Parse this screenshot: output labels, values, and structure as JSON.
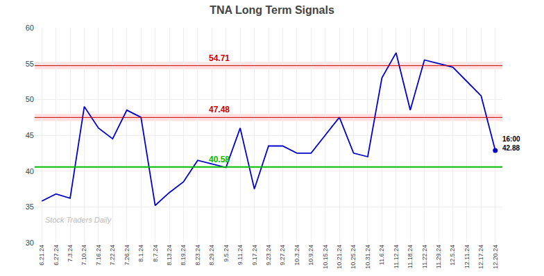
{
  "chart_data": {
    "type": "line",
    "title": "TNA Long Term Signals",
    "categories": [
      "6.21.24",
      "6.27.24",
      "7.3.24",
      "7.10.24",
      "7.16.24",
      "7.22.24",
      "7.26.24",
      "8.1.24",
      "8.7.24",
      "8.13.24",
      "8.19.24",
      "8.23.24",
      "8.29.24",
      "9.5.24",
      "9.11.24",
      "9.17.24",
      "9.23.24",
      "9.27.24",
      "10.3.24",
      "10.9.24",
      "10.15.24",
      "10.21.24",
      "10.25.24",
      "10.31.24",
      "11.6.24",
      "11.12.24",
      "11.18.24",
      "11.22.24",
      "11.29.24",
      "12.5.24",
      "12.11.24",
      "12.17.24",
      "12.20.24"
    ],
    "values": [
      35.8,
      36.8,
      36.2,
      49.0,
      46.0,
      44.5,
      48.5,
      47.5,
      35.2,
      37.0,
      38.5,
      41.5,
      41.0,
      40.5,
      46.0,
      37.5,
      43.5,
      43.5,
      42.5,
      42.5,
      45.0,
      47.5,
      42.5,
      42.0,
      53.0,
      56.5,
      48.5,
      55.5,
      55.0,
      54.5,
      52.5,
      50.5,
      42.88
    ],
    "color": "#0000cc",
    "ylim": [
      30,
      60
    ],
    "yticks": [
      30,
      35,
      40,
      45,
      50,
      55,
      60
    ],
    "grid": true,
    "reference_lines": [
      {
        "value": 54.71,
        "color": "#cc0000",
        "band": [
          54.21,
          55.21
        ],
        "band_color": "#ffcccc"
      },
      {
        "value": 47.48,
        "color": "#cc0000",
        "band": [
          46.98,
          47.98
        ],
        "band_color": "#ffcccc"
      },
      {
        "value": 40.58,
        "color": "#00bb00"
      }
    ],
    "annotations": [
      {
        "text": "16:00\n42.88"
      }
    ],
    "watermark": {
      "text": "Stock Traders Daily",
      "color": "#bbbbbb"
    }
  }
}
